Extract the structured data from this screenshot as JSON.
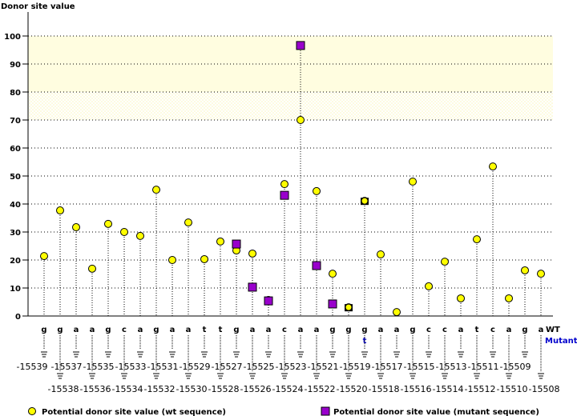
{
  "chart_data": {
    "type": "scatter",
    "title": "",
    "ylabel": "Donor site value",
    "ylim": [
      0,
      100
    ],
    "yticks": [
      0,
      10,
      20,
      30,
      40,
      50,
      60,
      70,
      80,
      90,
      100
    ],
    "grid": true,
    "highlight_band": [
      70,
      100
    ],
    "positions": [
      -15539,
      -15538,
      -15537,
      -15536,
      -15535,
      -15534,
      -15533,
      -15532,
      -15531,
      -15530,
      -15529,
      -15528,
      -15527,
      -15526,
      -15525,
      -15524,
      -15523,
      -15522,
      -15521,
      -15520,
      -15519,
      -15518,
      -15517,
      -15516,
      -15515,
      -15514,
      -15513,
      -15512,
      -15511,
      -15510,
      -15509,
      -15508
    ],
    "wt_sequence": [
      "g",
      "g",
      "a",
      "a",
      "g",
      "c",
      "a",
      "g",
      "a",
      "a",
      "t",
      "t",
      "g",
      "a",
      "a",
      "c",
      "a",
      "a",
      "g",
      "g",
      "g",
      "a",
      "a",
      "g",
      "c",
      "c",
      "a",
      "t",
      "c",
      "a",
      "g",
      "a"
    ],
    "mutant_sequence": [
      null,
      null,
      null,
      null,
      null,
      null,
      null,
      null,
      null,
      null,
      null,
      null,
      null,
      null,
      null,
      null,
      null,
      null,
      null,
      null,
      "t",
      null,
      null,
      null,
      null,
      null,
      null,
      null,
      null,
      null,
      null,
      null
    ],
    "series": [
      {
        "name": "Potential donor site value (wt sequence)",
        "marker": "circle",
        "color": "#ffff00",
        "values": [
          21.4,
          37.7,
          31.7,
          16.9,
          32.9,
          30.0,
          28.6,
          45.1,
          20.0,
          33.4,
          20.3,
          26.6,
          23.4,
          22.3,
          5.7,
          47.1,
          70.0,
          44.6,
          15.1,
          3.1,
          41.1,
          22.0,
          1.4,
          48.0,
          10.6,
          19.4,
          6.3,
          27.4,
          53.4,
          6.3,
          16.3,
          15.1
        ]
      },
      {
        "name": "Potential donor site value (mutant sequence)",
        "marker": "square",
        "color": "#9900cc",
        "values": [
          null,
          null,
          null,
          null,
          null,
          null,
          null,
          null,
          null,
          null,
          null,
          null,
          25.7,
          10.3,
          5.4,
          43.1,
          96.6,
          18.0,
          4.3,
          3.1,
          41.1,
          null,
          null,
          null,
          null,
          null,
          null,
          null,
          null,
          null,
          null,
          null
        ]
      }
    ],
    "row_labels": {
      "wt": "WT",
      "mutant": "Mutant"
    },
    "legend_position": "bottom"
  }
}
